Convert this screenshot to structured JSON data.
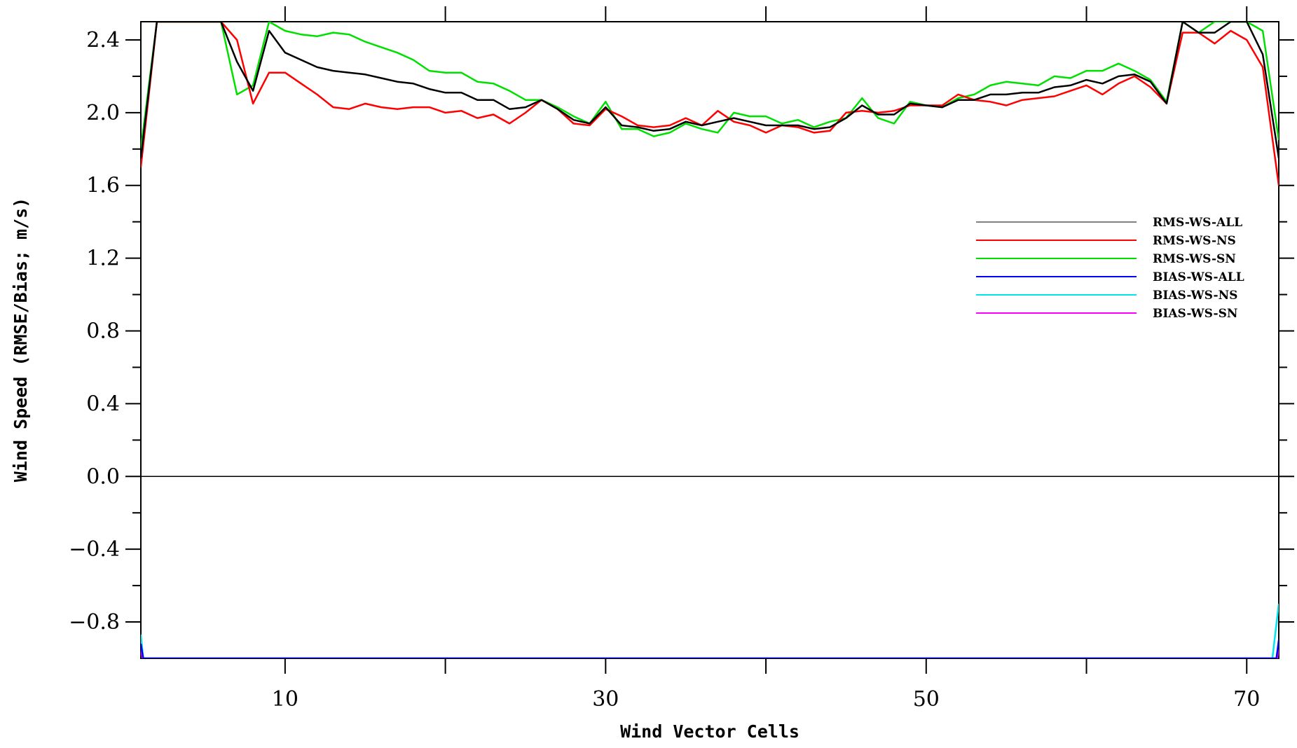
{
  "chart_data": {
    "type": "line",
    "xlabel": "Wind Vector Cells",
    "ylabel": "Wind Speed (RMSE/Bias; m/s)",
    "xlim": [
      1,
      72
    ],
    "ylim": [
      -1.0,
      2.5
    ],
    "xticks_labeled": [
      10,
      30,
      50,
      70
    ],
    "xticks_minor": [
      20,
      40,
      60
    ],
    "yticks_labeled": [
      2.4,
      2.0,
      1.6,
      1.2,
      0.8,
      0.4,
      0.0,
      -0.4,
      -0.8
    ],
    "yticks_labels": [
      "2.4",
      "2.0",
      "1.6",
      "1.2",
      "0.8",
      "0.4",
      "0.0",
      "−0.4",
      "−0.8"
    ],
    "yticks_minor": [
      2.2,
      1.8,
      1.4,
      1.0,
      0.6,
      0.2,
      -0.2,
      -0.6
    ],
    "reference_line_y": 0.0,
    "legend_position": "right",
    "series": [
      {
        "name": "RMS-WS-ALL",
        "color": "#000000",
        "legend_color": "#808080",
        "points": [
          [
            1,
            1.75
          ],
          [
            2,
            2.5
          ],
          [
            6,
            2.5
          ],
          [
            7,
            2.28
          ],
          [
            8,
            2.12
          ],
          [
            9,
            2.45
          ],
          [
            10,
            2.33
          ],
          [
            11,
            2.29
          ],
          [
            12,
            2.25
          ],
          [
            13,
            2.23
          ],
          [
            14,
            2.22
          ],
          [
            15,
            2.21
          ],
          [
            16,
            2.19
          ],
          [
            17,
            2.17
          ],
          [
            18,
            2.16
          ],
          [
            19,
            2.13
          ],
          [
            20,
            2.11
          ],
          [
            21,
            2.11
          ],
          [
            22,
            2.07
          ],
          [
            23,
            2.07
          ],
          [
            24,
            2.02
          ],
          [
            25,
            2.03
          ],
          [
            26,
            2.07
          ],
          [
            27,
            2.02
          ],
          [
            28,
            1.96
          ],
          [
            29,
            1.94
          ],
          [
            30,
            2.03
          ],
          [
            31,
            1.93
          ],
          [
            32,
            1.92
          ],
          [
            33,
            1.9
          ],
          [
            34,
            1.91
          ],
          [
            35,
            1.95
          ],
          [
            36,
            1.93
          ],
          [
            37,
            1.95
          ],
          [
            38,
            1.97
          ],
          [
            39,
            1.95
          ],
          [
            40,
            1.93
          ],
          [
            41,
            1.93
          ],
          [
            42,
            1.93
          ],
          [
            43,
            1.91
          ],
          [
            44,
            1.92
          ],
          [
            45,
            1.97
          ],
          [
            46,
            2.04
          ],
          [
            47,
            1.99
          ],
          [
            48,
            1.99
          ],
          [
            49,
            2.05
          ],
          [
            50,
            2.04
          ],
          [
            51,
            2.03
          ],
          [
            52,
            2.07
          ],
          [
            53,
            2.07
          ],
          [
            54,
            2.1
          ],
          [
            55,
            2.1
          ],
          [
            56,
            2.11
          ],
          [
            57,
            2.11
          ],
          [
            58,
            2.14
          ],
          [
            59,
            2.15
          ],
          [
            60,
            2.18
          ],
          [
            61,
            2.16
          ],
          [
            62,
            2.2
          ],
          [
            63,
            2.21
          ],
          [
            64,
            2.17
          ],
          [
            65,
            2.05
          ],
          [
            66,
            2.5
          ],
          [
            67,
            2.44
          ],
          [
            68,
            2.44
          ],
          [
            69,
            2.5
          ],
          [
            70,
            2.5
          ],
          [
            71,
            2.32
          ],
          [
            72,
            1.75
          ]
        ]
      },
      {
        "name": "RMS-WS-NS",
        "color": "#ff0000",
        "points": [
          [
            1,
            1.7
          ],
          [
            2,
            2.5
          ],
          [
            6,
            2.5
          ],
          [
            7,
            2.4
          ],
          [
            8,
            2.05
          ],
          [
            9,
            2.22
          ],
          [
            10,
            2.22
          ],
          [
            11,
            2.16
          ],
          [
            12,
            2.1
          ],
          [
            13,
            2.03
          ],
          [
            14,
            2.02
          ],
          [
            15,
            2.05
          ],
          [
            16,
            2.03
          ],
          [
            17,
            2.02
          ],
          [
            18,
            2.03
          ],
          [
            19,
            2.03
          ],
          [
            20,
            2.0
          ],
          [
            21,
            2.01
          ],
          [
            22,
            1.97
          ],
          [
            23,
            1.99
          ],
          [
            24,
            1.94
          ],
          [
            25,
            2.0
          ],
          [
            26,
            2.07
          ],
          [
            27,
            2.02
          ],
          [
            28,
            1.94
          ],
          [
            29,
            1.93
          ],
          [
            30,
            2.02
          ],
          [
            31,
            1.98
          ],
          [
            32,
            1.93
          ],
          [
            33,
            1.92
          ],
          [
            34,
            1.93
          ],
          [
            35,
            1.97
          ],
          [
            36,
            1.93
          ],
          [
            37,
            2.01
          ],
          [
            38,
            1.95
          ],
          [
            39,
            1.93
          ],
          [
            40,
            1.89
          ],
          [
            41,
            1.93
          ],
          [
            42,
            1.92
          ],
          [
            43,
            1.89
          ],
          [
            44,
            1.9
          ],
          [
            45,
            2.0
          ],
          [
            46,
            2.01
          ],
          [
            47,
            2.0
          ],
          [
            48,
            2.01
          ],
          [
            49,
            2.04
          ],
          [
            50,
            2.04
          ],
          [
            51,
            2.04
          ],
          [
            52,
            2.1
          ],
          [
            53,
            2.07
          ],
          [
            54,
            2.06
          ],
          [
            55,
            2.04
          ],
          [
            56,
            2.07
          ],
          [
            57,
            2.08
          ],
          [
            58,
            2.09
          ],
          [
            59,
            2.12
          ],
          [
            60,
            2.15
          ],
          [
            61,
            2.1
          ],
          [
            62,
            2.16
          ],
          [
            63,
            2.2
          ],
          [
            64,
            2.14
          ],
          [
            65,
            2.05
          ],
          [
            66,
            2.44
          ],
          [
            67,
            2.44
          ],
          [
            68,
            2.38
          ],
          [
            69,
            2.45
          ],
          [
            70,
            2.4
          ],
          [
            71,
            2.25
          ],
          [
            72,
            1.6
          ]
        ]
      },
      {
        "name": "RMS-WS-SN",
        "color": "#00e000",
        "legend_color": "#00e000",
        "points": [
          [
            1,
            1.8
          ],
          [
            2,
            2.5
          ],
          [
            6,
            2.5
          ],
          [
            7,
            2.1
          ],
          [
            8,
            2.15
          ],
          [
            9,
            2.5
          ],
          [
            10,
            2.45
          ],
          [
            11,
            2.43
          ],
          [
            12,
            2.42
          ],
          [
            13,
            2.44
          ],
          [
            14,
            2.43
          ],
          [
            15,
            2.39
          ],
          [
            16,
            2.36
          ],
          [
            17,
            2.33
          ],
          [
            18,
            2.29
          ],
          [
            19,
            2.23
          ],
          [
            20,
            2.22
          ],
          [
            21,
            2.22
          ],
          [
            22,
            2.17
          ],
          [
            23,
            2.16
          ],
          [
            24,
            2.12
          ],
          [
            25,
            2.07
          ],
          [
            26,
            2.07
          ],
          [
            27,
            2.03
          ],
          [
            28,
            1.98
          ],
          [
            29,
            1.94
          ],
          [
            30,
            2.06
          ],
          [
            31,
            1.91
          ],
          [
            32,
            1.91
          ],
          [
            33,
            1.87
          ],
          [
            34,
            1.89
          ],
          [
            35,
            1.94
          ],
          [
            36,
            1.91
          ],
          [
            37,
            1.89
          ],
          [
            38,
            2.0
          ],
          [
            39,
            1.98
          ],
          [
            40,
            1.98
          ],
          [
            41,
            1.94
          ],
          [
            42,
            1.96
          ],
          [
            43,
            1.92
          ],
          [
            44,
            1.95
          ],
          [
            45,
            1.97
          ],
          [
            46,
            2.08
          ],
          [
            47,
            1.97
          ],
          [
            48,
            1.94
          ],
          [
            49,
            2.06
          ],
          [
            50,
            2.04
          ],
          [
            51,
            2.03
          ],
          [
            52,
            2.08
          ],
          [
            53,
            2.1
          ],
          [
            54,
            2.15
          ],
          [
            55,
            2.17
          ],
          [
            56,
            2.16
          ],
          [
            57,
            2.15
          ],
          [
            58,
            2.2
          ],
          [
            59,
            2.19
          ],
          [
            60,
            2.23
          ],
          [
            61,
            2.23
          ],
          [
            62,
            2.27
          ],
          [
            63,
            2.23
          ],
          [
            64,
            2.18
          ],
          [
            65,
            2.06
          ],
          [
            66,
            2.5
          ],
          [
            67,
            2.44
          ],
          [
            68,
            2.5
          ],
          [
            69,
            2.5
          ],
          [
            70,
            2.5
          ],
          [
            71,
            2.45
          ],
          [
            72,
            1.85
          ]
        ]
      },
      {
        "name": "BIAS-WS-ALL",
        "color": "#0000ff",
        "points": [
          [
            1,
            -0.92
          ],
          [
            1.15,
            -1.0
          ],
          [
            71.85,
            -1.0
          ],
          [
            72,
            -0.9
          ]
        ]
      },
      {
        "name": "BIAS-WS-NS",
        "color": "#00e5ee",
        "points": [
          [
            1,
            -0.87
          ],
          [
            1.15,
            -1.0
          ],
          [
            71.6,
            -1.0
          ],
          [
            72,
            -0.7
          ]
        ]
      },
      {
        "name": "BIAS-WS-SN",
        "color": "#ff00ff",
        "points": [
          [
            1,
            -0.95
          ],
          [
            1.1,
            -1.0
          ],
          [
            71.9,
            -1.0
          ],
          [
            72,
            -0.95
          ]
        ]
      }
    ]
  }
}
